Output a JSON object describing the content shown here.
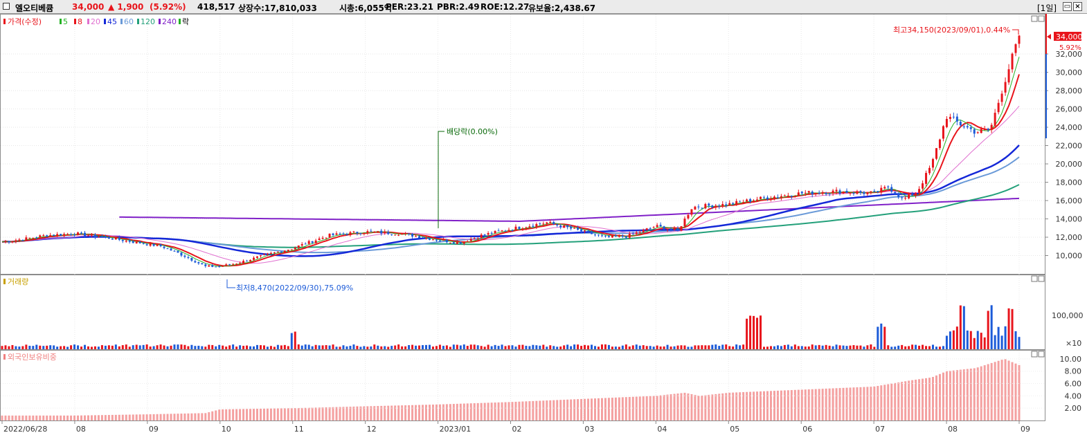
{
  "header": {
    "name": "엘오티베큠",
    "price": "34,000",
    "change": "▲ 1,900",
    "change_pct": "(5.92%)",
    "volume": "418,517",
    "listed": "상장수:17,810,033",
    "marketcap": "시총:6,055억",
    "per": "PER:23.21",
    "pbr": "PBR:2.49",
    "roe": "ROE:12.27",
    "float": "유보율:2,438.67",
    "period": "[1일]"
  },
  "legend": {
    "price": "가격(수정)",
    "ma5": "5",
    "ma8": "8",
    "ma20": "20",
    "ma45": "45",
    "ma60": "60",
    "ma120": "120",
    "ma240": "240",
    "ex": "락",
    "volume": "거래량",
    "foreign": "외국인보유비중"
  },
  "annotations": {
    "high": "최고34,150(2023/09/01),0.44%",
    "low": "최저8,470(2022/09/30),75.09%",
    "dividend": "배당락(0.00%)",
    "last_price": "34,000",
    "last_pct": "5.92%"
  },
  "colors": {
    "up": "#e8141b",
    "down": "#1c5bd8",
    "ma5": "#24b224",
    "ma8": "#e8141b",
    "ma20": "#e070d0",
    "ma45": "#1428d8",
    "ma60": "#6a9ad8",
    "ma120": "#23a07a",
    "ma240": "#8020c8",
    "foreign": "#f4a0a0"
  },
  "chart_data": [
    {
      "type": "line",
      "title": "가격(수정)",
      "x_ticks": [
        "2022/06/28",
        "08",
        "09",
        "10",
        "11",
        "12",
        "2023/01",
        "02",
        "03",
        "04",
        "05",
        "06",
        "07",
        "08",
        "09"
      ],
      "x_tick_months": [
        0,
        1,
        2,
        3,
        4,
        5,
        6,
        7,
        8,
        9,
        10,
        11,
        12,
        13,
        14
      ],
      "ylim": [
        8000,
        36000
      ],
      "y_ticks": [
        "10,000",
        "12,000",
        "14,000",
        "16,000",
        "18,000",
        "20,000",
        "22,000",
        "24,000",
        "26,000",
        "28,000",
        "30,000",
        "32,000"
      ],
      "y_tick_values": [
        10000,
        12000,
        14000,
        16000,
        18000,
        20000,
        22000,
        24000,
        26000,
        28000,
        30000,
        32000
      ],
      "price_path": {
        "t": [
          0,
          0.3,
          0.6,
          1.0,
          1.4,
          1.8,
          2.2,
          2.5,
          2.8,
          3.0,
          3.3,
          3.6,
          4.0,
          4.5,
          5.0,
          5.5,
          6.0,
          6.3,
          6.6,
          7.0,
          7.5,
          8.0,
          8.3,
          8.6,
          9.0,
          9.3,
          9.5,
          10.0,
          10.5,
          11.0,
          11.5,
          12.0,
          12.2,
          12.4,
          12.6,
          12.8,
          13.0,
          13.2,
          13.4,
          13.6,
          13.8,
          14.0
        ],
        "close": [
          11500,
          11800,
          12200,
          12400,
          12000,
          11500,
          11000,
          10000,
          8800,
          8800,
          9300,
          10000,
          10800,
          12200,
          12600,
          12400,
          11700,
          11400,
          12200,
          12900,
          13600,
          12600,
          12000,
          12100,
          13200,
          12700,
          15300,
          15600,
          16300,
          16800,
          17000,
          16800,
          17500,
          16100,
          17000,
          20000,
          25200,
          24300,
          23500,
          23700,
          29000,
          34000
        ]
      },
      "ma_end_values": {
        "ma5": 32500,
        "ma8": 30500,
        "ma20": 26800,
        "ma45": 22700,
        "ma60": 21300,
        "ma120": 17900,
        "ma240": 14800
      }
    },
    {
      "type": "bar",
      "title": "거래량",
      "y_ticks": [
        "100,000"
      ],
      "unit": "×10",
      "spikes": [
        {
          "t": 4.0,
          "v": 0.37
        },
        {
          "t": 10.3,
          "v": 0.75
        },
        {
          "t": 10.4,
          "v": 0.72
        },
        {
          "t": 12.1,
          "v": 0.55
        },
        {
          "t": 13.2,
          "v": 0.95
        },
        {
          "t": 13.6,
          "v": 0.98
        },
        {
          "t": 13.9,
          "v": 1.0
        },
        {
          "t": 14.1,
          "v": 0.9
        },
        {
          "t": 14.3,
          "v": 0.85
        }
      ]
    },
    {
      "type": "bar",
      "title": "외국인보유비중",
      "ylim": [
        0,
        11
      ],
      "y_ticks": [
        "2.00",
        "4.00",
        "6.00",
        "8.00",
        "10.00"
      ],
      "y_tick_values": [
        2,
        4,
        6,
        8,
        10
      ],
      "path": {
        "t": [
          0,
          1,
          2,
          2.8,
          3.0,
          4,
          5,
          6,
          7,
          8,
          9,
          9.4,
          9.6,
          10,
          11,
          12,
          12.5,
          12.8,
          13,
          13.4,
          13.8,
          14.0,
          14.5
        ],
        "v": [
          0.8,
          0.8,
          1.0,
          1.2,
          1.8,
          2.0,
          2.3,
          2.6,
          3.0,
          3.5,
          4.0,
          4.5,
          4.0,
          4.5,
          5.0,
          5.5,
          6.5,
          7.0,
          8.0,
          8.5,
          10.0,
          9.0,
          8.4
        ]
      }
    }
  ]
}
